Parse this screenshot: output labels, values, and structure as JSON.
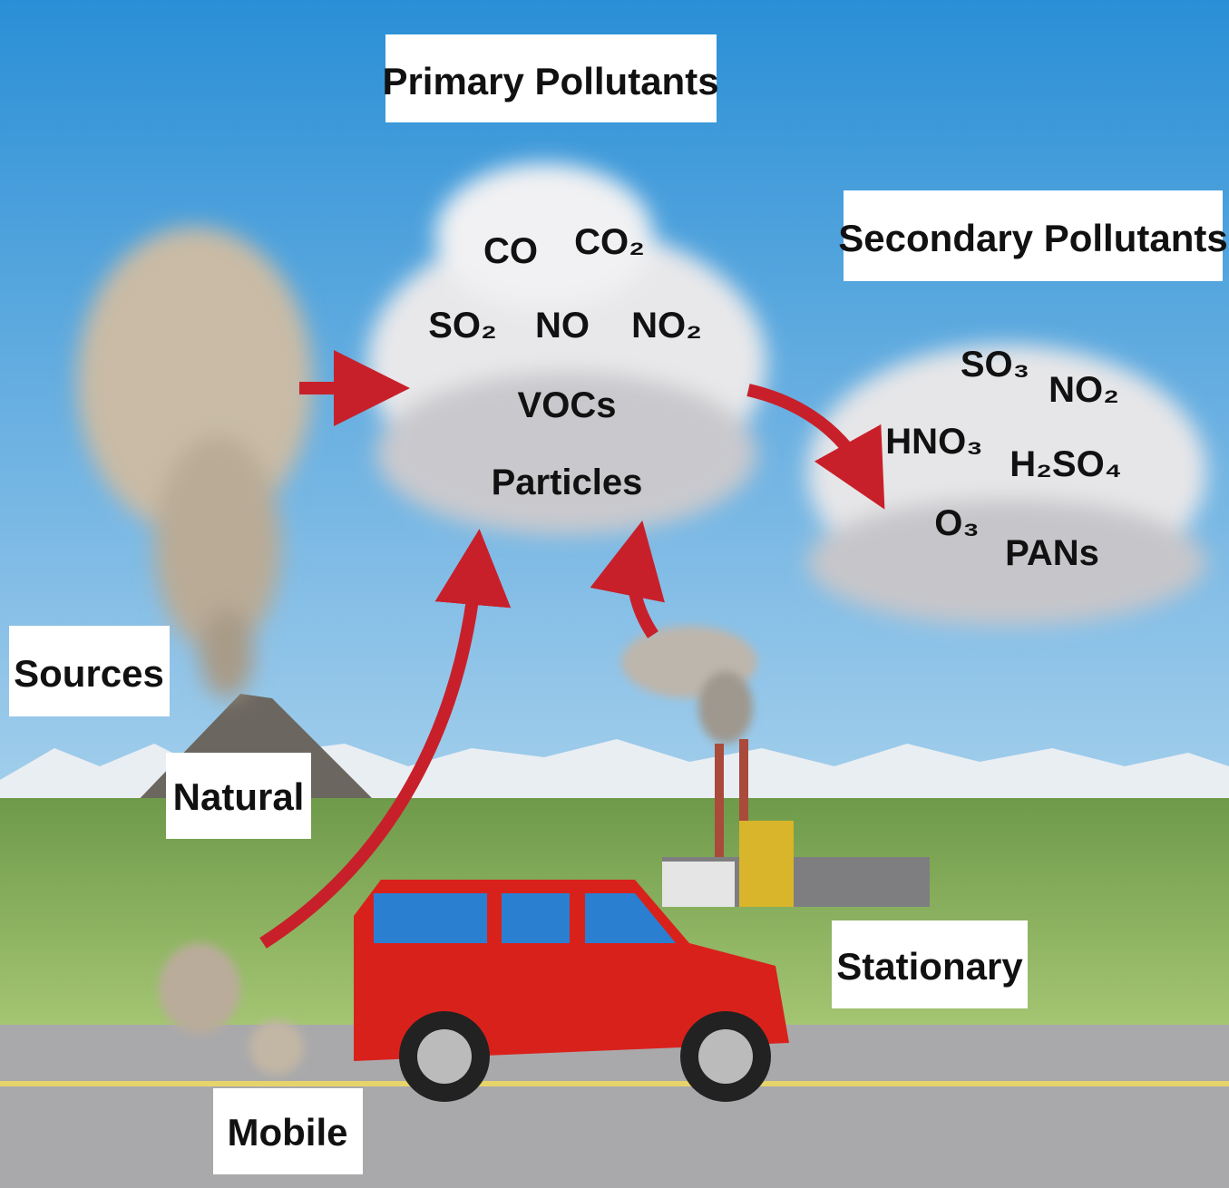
{
  "labels": {
    "primary_title": "Primary Pollutants",
    "secondary_title": "Secondary Pollutants",
    "sources": "Sources",
    "natural": "Natural",
    "stationary": "Stationary",
    "mobile": "Mobile"
  },
  "primary_pollutants": [
    "CO",
    "CO₂",
    "SO₂",
    "NO",
    "NO₂",
    "VOCs",
    "Particles"
  ],
  "secondary_pollutants": [
    "SO₃",
    "NO₂",
    "HNO₃",
    "H₂SO₄",
    "O₃",
    "PANs"
  ]
}
